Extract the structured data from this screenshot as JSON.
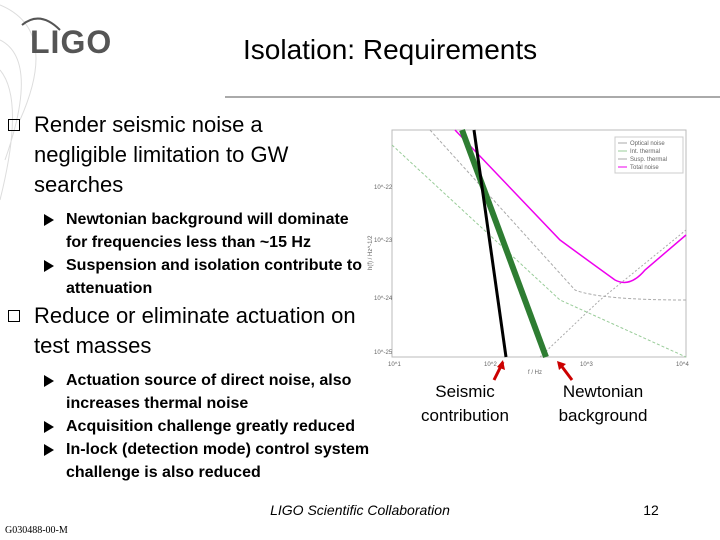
{
  "header": {
    "logo": "LIGO",
    "title": "Isolation: Requirements"
  },
  "bullets": [
    {
      "text": "Render seismic noise a negligible limitation to GW searches",
      "sub": [
        "Newtonian background will dominate for frequencies less than ~15 Hz",
        "Suspension and isolation contribute to attenuation"
      ]
    },
    {
      "text": "Reduce or eliminate actuation on test masses",
      "sub": [
        "Actuation source of direct noise, also increases thermal noise",
        "Acquisition challenge greatly reduced",
        "In-lock (detection mode) control system challenge is also reduced"
      ]
    }
  ],
  "figure": {
    "legend": [
      "Optical noise",
      "Int. thermal",
      "Susp. thermal",
      "Total noise"
    ],
    "y_label": "h(f) / Hz^-1/2",
    "x_label": "f / Hz",
    "y_ticks": [
      "10^-22",
      "10^-23",
      "10^-24",
      "10^-25"
    ],
    "x_ticks": [
      "10^1",
      "10^2",
      "10^3",
      "10^4"
    ],
    "annotations": [
      "Seismic contribution",
      "Newtonian background"
    ]
  },
  "footer": {
    "collaboration": "LIGO Scientific Collaboration",
    "page": "12",
    "doc_id": "G030488-00-M"
  }
}
